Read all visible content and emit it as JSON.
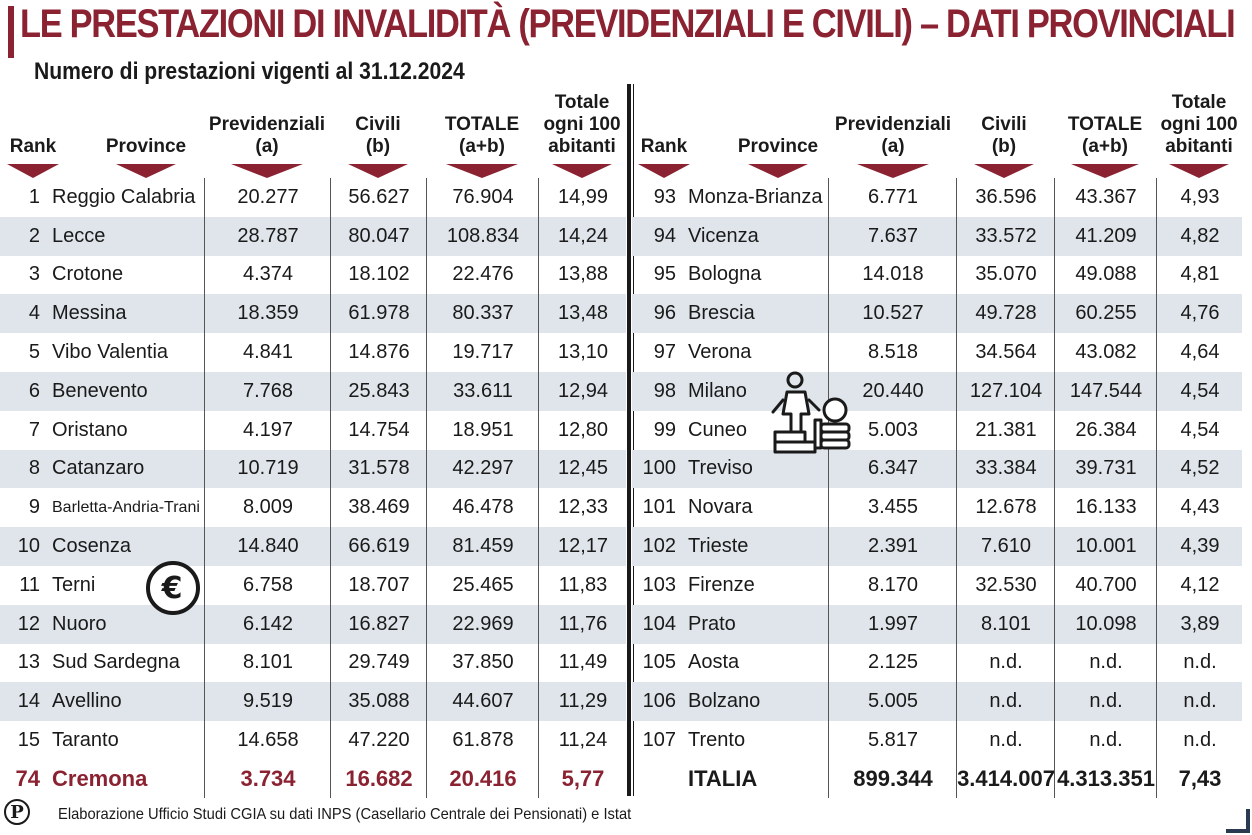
{
  "title": "LE PRESTAZIONI DI INVALIDITÀ (PREVIDENZIALI E CIVILI) – DATI PROVINCIALI",
  "subtitle": "Numero di prestazioni vigenti al 31.12.2024",
  "colors": {
    "accent": "#8b2232",
    "stripe": "#dfe5ea",
    "text": "#1a1a1a"
  },
  "headers": {
    "rank": "Rank",
    "province": "Province",
    "prev1": "Previdenziali",
    "prev2": "(a)",
    "civ1": "Civili",
    "civ2": "(b)",
    "tot1": "TOTALE",
    "tot2": "(a+b)",
    "per1": "Totale",
    "per2": "ogni 100",
    "per3": "abitanti"
  },
  "left_rows": [
    {
      "rank": "1",
      "province": "Reggio Calabria",
      "prev": "20.277",
      "civ": "56.627",
      "tot": "76.904",
      "per": "14,99"
    },
    {
      "rank": "2",
      "province": "Lecce",
      "prev": "28.787",
      "civ": "80.047",
      "tot": "108.834",
      "per": "14,24"
    },
    {
      "rank": "3",
      "province": "Crotone",
      "prev": "4.374",
      "civ": "18.102",
      "tot": "22.476",
      "per": "13,88"
    },
    {
      "rank": "4",
      "province": "Messina",
      "prev": "18.359",
      "civ": "61.978",
      "tot": "80.337",
      "per": "13,48"
    },
    {
      "rank": "5",
      "province": "Vibo Valentia",
      "prev": "4.841",
      "civ": "14.876",
      "tot": "19.717",
      "per": "13,10"
    },
    {
      "rank": "6",
      "province": "Benevento",
      "prev": "7.768",
      "civ": "25.843",
      "tot": "33.611",
      "per": "12,94"
    },
    {
      "rank": "7",
      "province": "Oristano",
      "prev": "4.197",
      "civ": "14.754",
      "tot": "18.951",
      "per": "12,80"
    },
    {
      "rank": "8",
      "province": "Catanzaro",
      "prev": "10.719",
      "civ": "31.578",
      "tot": "42.297",
      "per": "12,45"
    },
    {
      "rank": "9",
      "province": "Barletta-Andria-Trani",
      "prev": "8.009",
      "civ": "38.469",
      "tot": "46.478",
      "per": "12,33"
    },
    {
      "rank": "10",
      "province": "Cosenza",
      "prev": "14.840",
      "civ": "66.619",
      "tot": "81.459",
      "per": "12,17"
    },
    {
      "rank": "11",
      "province": "Terni",
      "prev": "6.758",
      "civ": "18.707",
      "tot": "25.465",
      "per": "11,83"
    },
    {
      "rank": "12",
      "province": "Nuoro",
      "prev": "6.142",
      "civ": "16.827",
      "tot": "22.969",
      "per": "11,76"
    },
    {
      "rank": "13",
      "province": "Sud Sardegna",
      "prev": "8.101",
      "civ": "29.749",
      "tot": "37.850",
      "per": "11,49"
    },
    {
      "rank": "14",
      "province": "Avellino",
      "prev": "9.519",
      "civ": "35.088",
      "tot": "44.607",
      "per": "11,29"
    },
    {
      "rank": "15",
      "province": "Taranto",
      "prev": "14.658",
      "civ": "47.220",
      "tot": "61.878",
      "per": "11,24"
    }
  ],
  "left_total": {
    "rank": "74",
    "province": "Cremona",
    "prev": "3.734",
    "civ": "16.682",
    "tot": "20.416",
    "per": "5,77"
  },
  "right_rows": [
    {
      "rank": "93",
      "province": "Monza-Brianza",
      "prev": "6.771",
      "civ": "36.596",
      "tot": "43.367",
      "per": "4,93"
    },
    {
      "rank": "94",
      "province": "Vicenza",
      "prev": "7.637",
      "civ": "33.572",
      "tot": "41.209",
      "per": "4,82"
    },
    {
      "rank": "95",
      "province": "Bologna",
      "prev": "14.018",
      "civ": "35.070",
      "tot": "49.088",
      "per": "4,81"
    },
    {
      "rank": "96",
      "province": "Brescia",
      "prev": "10.527",
      "civ": "49.728",
      "tot": "60.255",
      "per": "4,76"
    },
    {
      "rank": "97",
      "province": "Verona",
      "prev": "8.518",
      "civ": "34.564",
      "tot": "43.082",
      "per": "4,64"
    },
    {
      "rank": "98",
      "province": "Milano",
      "prev": "20.440",
      "civ": "127.104",
      "tot": "147.544",
      "per": "4,54"
    },
    {
      "rank": "99",
      "province": "Cuneo",
      "prev": "5.003",
      "civ": "21.381",
      "tot": "26.384",
      "per": "4,54"
    },
    {
      "rank": "100",
      "province": "Treviso",
      "prev": "6.347",
      "civ": "33.384",
      "tot": "39.731",
      "per": "4,52"
    },
    {
      "rank": "101",
      "province": "Novara",
      "prev": "3.455",
      "civ": "12.678",
      "tot": "16.133",
      "per": "4,43"
    },
    {
      "rank": "102",
      "province": "Trieste",
      "prev": "2.391",
      "civ": "7.610",
      "tot": "10.001",
      "per": "4,39"
    },
    {
      "rank": "103",
      "province": "Firenze",
      "prev": "8.170",
      "civ": "32.530",
      "tot": "40.700",
      "per": "4,12"
    },
    {
      "rank": "104",
      "province": "Prato",
      "prev": "1.997",
      "civ": "8.101",
      "tot": "10.098",
      "per": "3,89"
    },
    {
      "rank": "105",
      "province": "Aosta",
      "prev": "2.125",
      "civ": "n.d.",
      "tot": "n.d.",
      "per": "n.d."
    },
    {
      "rank": "106",
      "province": "Bolzano",
      "prev": "5.005",
      "civ": "n.d.",
      "tot": "n.d.",
      "per": "n.d."
    },
    {
      "rank": "107",
      "province": "Trento",
      "prev": "5.817",
      "civ": "n.d.",
      "tot": "n.d.",
      "per": "n.d."
    }
  ],
  "right_total": {
    "rank": "",
    "province": "ITALIA",
    "prev": "899.344",
    "civ": "3.414.007",
    "tot": "4.313.351",
    "per": "7,43"
  },
  "footer": "Elaborazione Ufficio Studi CGIA su dati INPS (Casellario Centrale dei Pensionati) e Istat",
  "icons": {
    "euro": "euro-coin-icon",
    "figure": "person-climbing-coins-icon",
    "logo": "publisher-logo-p"
  }
}
